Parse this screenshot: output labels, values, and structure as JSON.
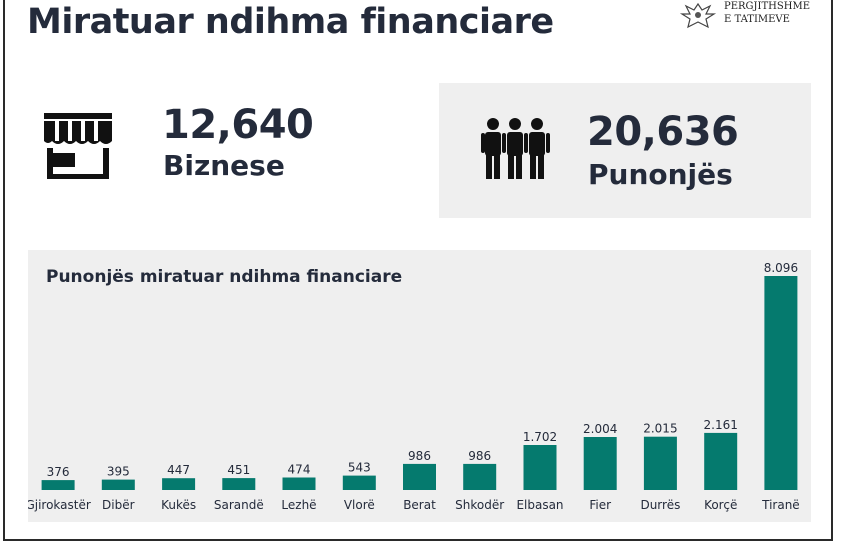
{
  "title": "Miratuar ndihma financiare",
  "logo": {
    "line1": "PERGJITHSHME",
    "line2": "E TATIMEVE",
    "icon": "eagle-emblem-icon"
  },
  "stats": {
    "businesses": {
      "value": "12,640",
      "label": "Biznese",
      "icon": "storefront-icon"
    },
    "employees": {
      "value": "20,636",
      "label": "Punonjës",
      "icon": "people-group-icon"
    }
  },
  "colors": {
    "bar": "#057a6e",
    "text": "#242b3b",
    "panel": "#efefef"
  },
  "chart_data": {
    "type": "bar",
    "title": "Punonjës miratuar ndihma financiare",
    "categories": [
      "Gjirokastër",
      "Dibër",
      "Kukës",
      "Sarandë",
      "Lezhë",
      "Vlorë",
      "Berat",
      "Shkodër",
      "Elbasan",
      "Fier",
      "Durrës",
      "Korçë",
      "Tiranë"
    ],
    "values": [
      376,
      395,
      447,
      451,
      474,
      543,
      986,
      986,
      1702,
      2004,
      2015,
      2161,
      8096
    ],
    "value_labels": [
      "376",
      "395",
      "447",
      "451",
      "474",
      "543",
      "986",
      "986",
      "1.702",
      "2.004",
      "2.015",
      "2.161",
      "8.096"
    ],
    "xlabel": "",
    "ylabel": "",
    "ylim": [
      0,
      8096
    ],
    "grid": false,
    "legend": "none"
  }
}
